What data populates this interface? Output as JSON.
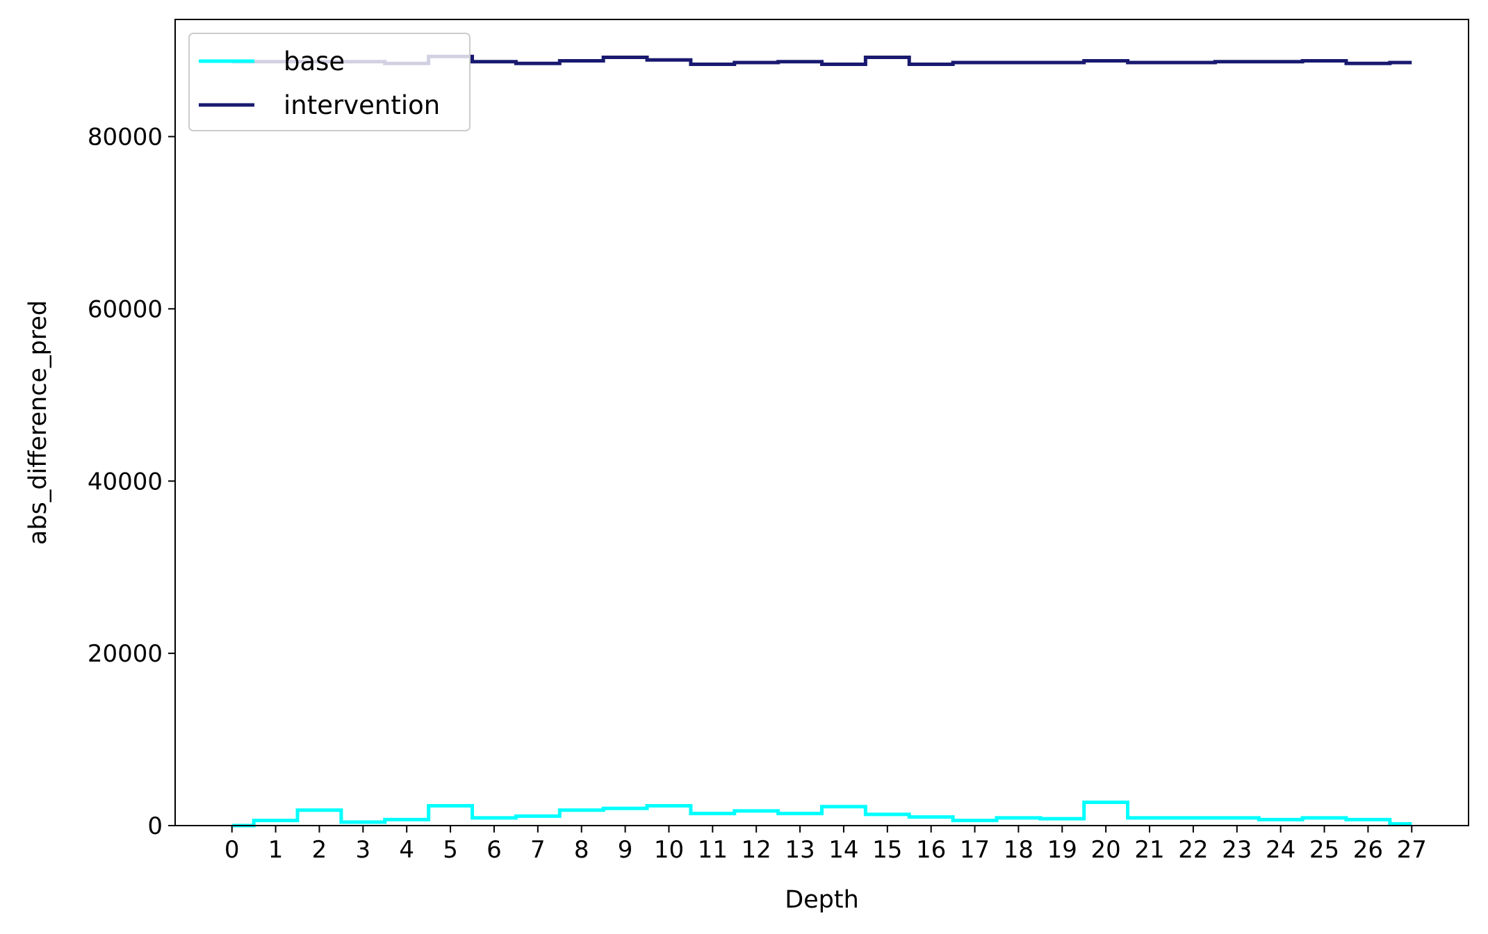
{
  "chart_data": {
    "type": "line",
    "step": "mid",
    "title": "",
    "xlabel": "Depth",
    "ylabel": "abs_difference_pred",
    "x": [
      0,
      1,
      2,
      3,
      4,
      5,
      6,
      7,
      8,
      9,
      10,
      11,
      12,
      13,
      14,
      15,
      16,
      17,
      18,
      19,
      20,
      21,
      22,
      23,
      24,
      25,
      26,
      27
    ],
    "xlim": [
      -1.3,
      28.3
    ],
    "ylim": [
      0,
      93600
    ],
    "yticks": [
      0,
      20000,
      40000,
      60000,
      80000
    ],
    "grid": false,
    "legend": "upper-left",
    "series": [
      {
        "name": "base",
        "color": "#00ffff",
        "values": [
          0,
          600,
          1800,
          400,
          700,
          2300,
          900,
          1100,
          1800,
          2000,
          2300,
          1400,
          1700,
          1400,
          2200,
          1300,
          1000,
          600,
          900,
          800,
          2700,
          900,
          900,
          900,
          700,
          900,
          700,
          200
        ]
      },
      {
        "name": "intervention",
        "color": "#191970",
        "values": [
          88700,
          88700,
          88700,
          88700,
          88500,
          89300,
          88700,
          88500,
          88800,
          89200,
          88900,
          88400,
          88600,
          88700,
          88400,
          89200,
          88400,
          88600,
          88600,
          88600,
          88800,
          88600,
          88600,
          88700,
          88700,
          88800,
          88500,
          88600
        ]
      }
    ]
  }
}
